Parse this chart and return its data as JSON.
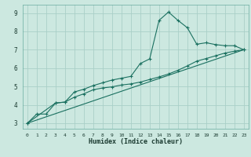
{
  "xlabel": "Humidex (Indice chaleur)",
  "bg_color": "#cce8e0",
  "grid_color": "#aacfc8",
  "line_color": "#1a7060",
  "xlim": [
    -0.5,
    23.5
  ],
  "ylim": [
    2.7,
    9.45
  ],
  "xticks": [
    0,
    1,
    2,
    3,
    4,
    5,
    6,
    7,
    8,
    9,
    10,
    11,
    12,
    13,
    14,
    15,
    16,
    17,
    18,
    19,
    20,
    21,
    22,
    23
  ],
  "yticks": [
    3,
    4,
    5,
    6,
    7,
    8,
    9
  ],
  "line1_x": [
    0,
    1,
    2,
    3,
    4,
    5,
    6,
    7,
    8,
    9,
    10,
    11,
    12,
    13,
    14,
    15,
    16,
    17,
    18,
    19,
    20,
    21,
    22,
    23
  ],
  "line1_y": [
    3.0,
    3.5,
    3.5,
    4.1,
    4.15,
    4.7,
    4.85,
    5.05,
    5.2,
    5.35,
    5.45,
    5.55,
    6.25,
    6.5,
    8.6,
    9.05,
    8.6,
    8.2,
    7.3,
    7.38,
    7.28,
    7.22,
    7.22,
    7.0
  ],
  "line2_x": [
    0,
    3,
    4,
    5,
    6,
    7,
    8,
    9,
    10,
    11,
    12,
    13,
    14,
    15,
    16,
    17,
    18,
    19,
    20,
    21,
    22,
    23
  ],
  "line2_y": [
    3.0,
    4.1,
    4.15,
    4.42,
    4.6,
    4.82,
    4.92,
    4.98,
    5.08,
    5.14,
    5.24,
    5.38,
    5.52,
    5.68,
    5.88,
    6.12,
    6.38,
    6.52,
    6.67,
    6.82,
    6.92,
    7.0
  ],
  "line3_x": [
    0,
    23
  ],
  "line3_y": [
    3.0,
    7.0
  ]
}
